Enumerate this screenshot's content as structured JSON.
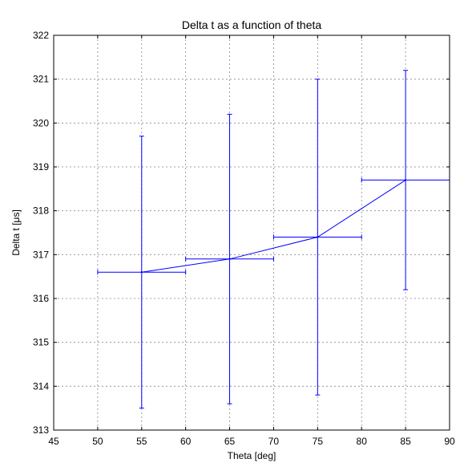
{
  "chart_data": {
    "type": "line",
    "title": "Delta t as a function of theta",
    "xlabel": "Theta [deg]",
    "ylabel": "Delta t [μs]",
    "xlim": [
      45,
      90
    ],
    "ylim": [
      313,
      322
    ],
    "xticks": [
      45,
      50,
      55,
      60,
      65,
      70,
      75,
      80,
      85,
      90
    ],
    "yticks": [
      313,
      314,
      315,
      316,
      317,
      318,
      319,
      320,
      321,
      322
    ],
    "grid": true,
    "color": "#0000ff",
    "series": [
      {
        "x": [
          55,
          65,
          75,
          85
        ],
        "y": [
          316.6,
          316.9,
          317.4,
          318.7
        ],
        "xerr": [
          5,
          5,
          5,
          5
        ],
        "yerr_low": [
          313.5,
          313.6,
          313.8,
          316.2
        ],
        "yerr_high": [
          319.7,
          320.2,
          321.0,
          321.2
        ]
      }
    ]
  }
}
